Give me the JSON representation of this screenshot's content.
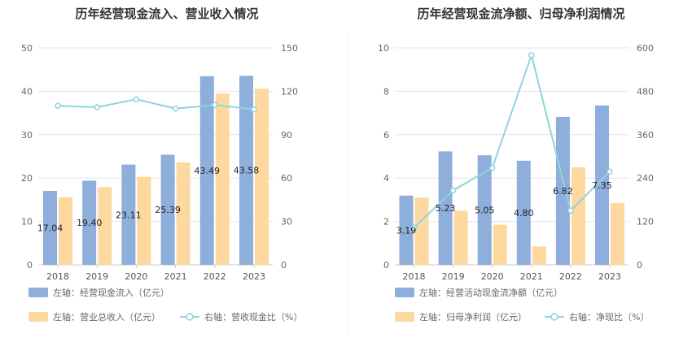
{
  "chart_data": [
    {
      "type": "bar",
      "title": "历年经营现金流入、营业收入情况",
      "categories": [
        "2018",
        "2019",
        "2020",
        "2021",
        "2022",
        "2023"
      ],
      "y_left": {
        "ticks": [
          "0",
          "10",
          "20",
          "30",
          "40",
          "50"
        ],
        "ylim": [
          0,
          50
        ]
      },
      "y_right": {
        "ticks": [
          "0",
          "30",
          "60",
          "90",
          "120",
          "150"
        ],
        "ylim": [
          0,
          150
        ]
      },
      "series": [
        {
          "name": "左轴：经营现金流入（亿元）",
          "axis": "left",
          "type": "bar",
          "color": "#8eaedb",
          "values": [
            17.04,
            19.4,
            23.11,
            25.39,
            43.49,
            43.58
          ],
          "labels": [
            "17.04",
            "19.40",
            "23.11",
            "25.39",
            "43.49",
            "43.58"
          ]
        },
        {
          "name": "左轴：营业总收入（亿元）",
          "axis": "left",
          "type": "bar",
          "color": "#fdd9a0",
          "values": [
            15.6,
            17.9,
            20.3,
            23.6,
            39.5,
            40.6
          ]
        },
        {
          "name": "右轴：营收现金比（%）",
          "axis": "right",
          "type": "line",
          "color": "#8fd5dc",
          "values": [
            110,
            109,
            114.5,
            108,
            110.5,
            107.5
          ]
        }
      ],
      "grid": "horizontal"
    },
    {
      "type": "bar",
      "title": "历年经营现金流净额、归母净利润情况",
      "categories": [
        "2018",
        "2019",
        "2020",
        "2021",
        "2022",
        "2023"
      ],
      "y_left": {
        "ticks": [
          "0",
          "2",
          "4",
          "6",
          "8",
          "10"
        ],
        "ylim": [
          0,
          10
        ]
      },
      "y_right": {
        "ticks": [
          "0",
          "120",
          "240",
          "360",
          "480",
          "600"
        ],
        "ylim": [
          0,
          600
        ]
      },
      "series": [
        {
          "name": "左轴：经营活动现金流净额（亿元）",
          "axis": "left",
          "type": "bar",
          "color": "#8eaedb",
          "values": [
            3.19,
            5.23,
            5.05,
            4.8,
            6.82,
            7.35
          ],
          "labels": [
            "3.19",
            "5.23",
            "5.05",
            "4.80",
            "6.82",
            "7.35"
          ]
        },
        {
          "name": "左轴：归母净利润（亿元）",
          "axis": "left",
          "type": "bar",
          "color": "#fdd9a0",
          "values": [
            3.1,
            2.5,
            1.85,
            0.85,
            4.5,
            2.85
          ]
        },
        {
          "name": "右轴：净现比（%）",
          "axis": "right",
          "type": "line",
          "color": "#8fd5dc",
          "values": [
            103,
            206,
            268,
            580,
            150,
            258
          ]
        }
      ],
      "grid": "horizontal"
    }
  ]
}
